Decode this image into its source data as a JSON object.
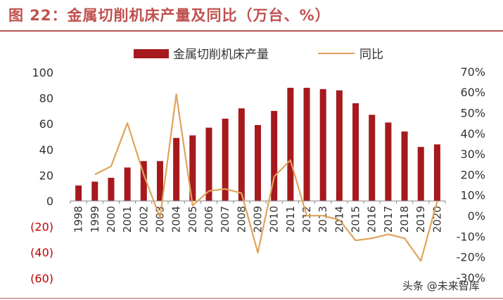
{
  "header": {
    "title": "图 22：金属切削机床产量及同比（万台、%）"
  },
  "watermark": "头条 @未来智库",
  "colors": {
    "title": "#c0504d",
    "bar": "#a6191c",
    "line": "#e0a35a",
    "negative_label": "#c00000",
    "axis_text": "#333333"
  },
  "chart_data": {
    "type": "bar",
    "categories": [
      "1998",
      "1999",
      "2000",
      "2001",
      "2002",
      "2003",
      "2004",
      "2005",
      "2006",
      "2007",
      "2008",
      "2009",
      "2010",
      "2011",
      "2012",
      "2013",
      "2014",
      "2015",
      "2016",
      "2017",
      "2018",
      "2019",
      "2020"
    ],
    "series": [
      {
        "name": "金属切削机床产量",
        "type": "bar",
        "axis": "left",
        "values": [
          12,
          15,
          18,
          26,
          31,
          31,
          49,
          51,
          57,
          64,
          72,
          59,
          70,
          88,
          88,
          87,
          86,
          76,
          67,
          61,
          54,
          42,
          44
        ]
      },
      {
        "name": "同比",
        "type": "line",
        "axis": "right",
        "values": [
          null,
          20,
          24,
          45,
          20,
          -1,
          59,
          5,
          12,
          13,
          11,
          -18,
          19,
          27,
          0,
          0,
          -2,
          -12,
          -11,
          -9,
          -11,
          -22,
          7
        ]
      }
    ],
    "left_axis": {
      "ylim": [
        -60,
        100
      ],
      "ticks": [
        100,
        80,
        60,
        40,
        20,
        0,
        -20,
        -40,
        -60
      ],
      "tick_labels": [
        "100",
        "80",
        "60",
        "40",
        "20",
        "0",
        "(20)",
        "(40)",
        "(60)"
      ]
    },
    "right_axis": {
      "ylim": [
        -30,
        70
      ],
      "ticks": [
        70,
        60,
        50,
        40,
        30,
        20,
        10,
        0,
        -10,
        -20,
        -30
      ],
      "tick_labels": [
        "70%",
        "60%",
        "50%",
        "40%",
        "30%",
        "20%",
        "10%",
        "0%",
        "-10%",
        "-20%",
        "-30%"
      ]
    },
    "legend": {
      "placement": "top",
      "entries": [
        "金属切削机床产量",
        "同比"
      ]
    },
    "grid": false
  }
}
